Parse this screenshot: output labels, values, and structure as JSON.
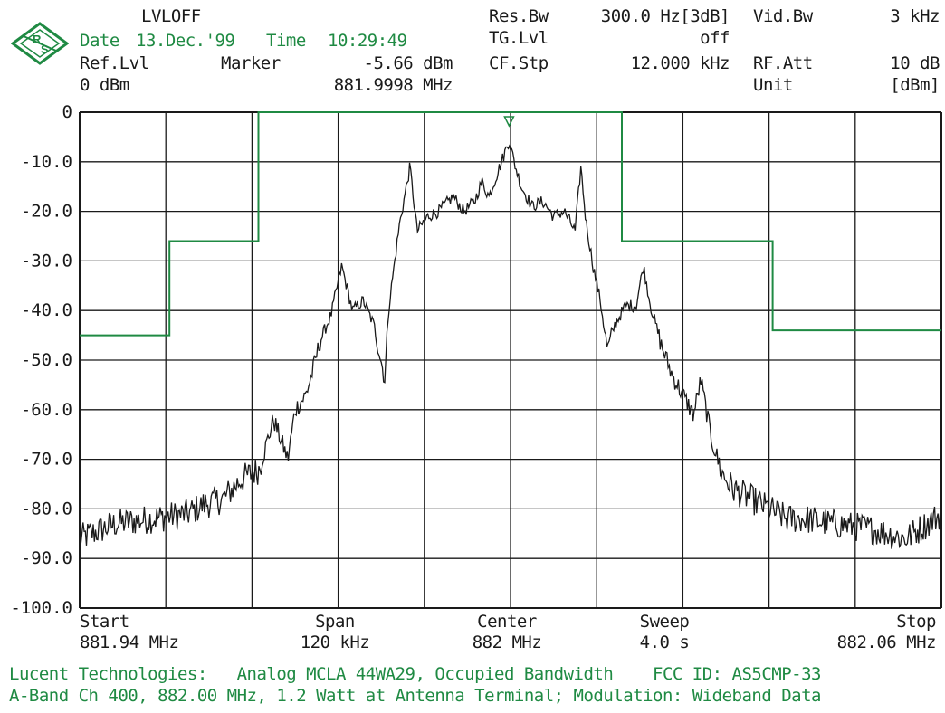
{
  "header": {
    "mode": "LVLOFF",
    "date_label": "Date",
    "date": "13.Dec.'99",
    "time_label": "Time",
    "time": "10:29:49",
    "ref_lvl_label": "Ref.Lvl",
    "ref_lvl": "0 dBm",
    "marker_label": "Marker",
    "marker_level": "-5.66 dBm",
    "marker_freq": "881.9998 MHz",
    "res_bw_label": "Res.Bw",
    "res_bw": "300.0 Hz[3dB]",
    "tg_lvl_label": "TG.Lvl",
    "tg_lvl": "off",
    "cf_stp_label": "CF.Stp",
    "cf_stp": "12.000 kHz",
    "vid_bw_label": "Vid.Bw",
    "vid_bw": "3 kHz",
    "rf_att_label": "RF.Att",
    "rf_att": "10 dB",
    "unit_label": "Unit",
    "unit": "[dBm]"
  },
  "footer": {
    "start_label": "Start",
    "start": "881.94 MHz",
    "span_label": "Span",
    "span": "120 kHz",
    "center_label": "Center",
    "center": "882 MHz",
    "sweep_label": "Sweep",
    "sweep": "4.0 s",
    "stop_label": "Stop",
    "stop": "882.06 MHz",
    "caption_line1": "Lucent Technologies:   Analog MCLA 44WA29, Occupied Bandwidth    FCC ID: AS5CMP-33",
    "caption_line2": "A-Band Ch 400, 882.00 MHz, 1.2 Watt at Antenna Terminal; Modulation: Wideband Data"
  },
  "colors": {
    "trace": "#1a1a1a",
    "mask": "#1f8a43",
    "grid": "#1a1a1a",
    "brand": "#1f8a43"
  },
  "chart_data": {
    "type": "line",
    "xlim": [
      881.94,
      882.06
    ],
    "ylim": [
      -100,
      0
    ],
    "y_ticks": [
      0,
      -10,
      -20,
      -30,
      -40,
      -50,
      -60,
      -70,
      -80,
      -90,
      -100
    ],
    "y_tick_labels": [
      "0",
      "-10.0",
      "-20.0",
      "-30.0",
      "-40.0",
      "-50.0",
      "-60.0",
      "-70.0",
      "-80.0",
      "-90.0",
      "-100.0"
    ],
    "x_divisions": 10,
    "grid": true,
    "marker": {
      "x": 881.9998,
      "y": -5.66
    },
    "center_line_x": 882.0,
    "series": [
      {
        "role": "trace",
        "x": [
          881.94,
          881.945,
          881.95,
          881.955,
          881.9575,
          881.96,
          881.9625,
          881.965,
          881.967,
          881.969,
          881.97,
          881.9715,
          881.9725,
          881.9735,
          881.975,
          881.9765,
          881.978,
          881.9795,
          881.981,
          881.9825,
          881.983,
          881.9845,
          881.986,
          881.987,
          881.9885,
          881.99,
          881.992,
          881.9935,
          881.995,
          881.996,
          881.997,
          881.998,
          881.999,
          881.9998,
          882.0005,
          882.0015,
          882.003,
          882.0045,
          882.006,
          882.0075,
          882.009,
          882.0098,
          882.0105,
          882.0115,
          882.0125,
          882.0135,
          882.0145,
          882.016,
          882.0175,
          882.0185,
          882.0195,
          882.021,
          882.0225,
          882.024,
          882.0255,
          882.0265,
          882.028,
          882.0295,
          882.031,
          882.0335,
          882.036,
          882.0385,
          882.041,
          882.045,
          882.05,
          882.055,
          882.06
        ],
        "y": [
          -86,
          -83,
          -82,
          -81,
          -79,
          -78,
          -74,
          -72,
          -62,
          -70,
          -60,
          -57,
          -52,
          -46,
          -41,
          -31,
          -40,
          -38,
          -43,
          -54,
          -40,
          -23,
          -11,
          -24,
          -21,
          -20,
          -17,
          -20,
          -18,
          -14,
          -17,
          -13,
          -9,
          -5.66,
          -10,
          -15,
          -19,
          -18,
          -21,
          -20,
          -24,
          -11,
          -22,
          -31,
          -38,
          -48,
          -43,
          -39,
          -39,
          -31,
          -39,
          -47,
          -53,
          -57,
          -61,
          -54,
          -66,
          -73,
          -76,
          -78,
          -80,
          -82,
          -82,
          -83,
          -84,
          -86,
          -81
        ]
      },
      {
        "role": "mask",
        "x": [
          881.94,
          881.9525,
          881.9525,
          881.9649,
          881.9649,
          882.0155,
          882.0155,
          882.0365,
          882.0365,
          882.06
        ],
        "y": [
          -45,
          -45,
          -26,
          -26,
          0,
          0,
          -26,
          -26,
          -44,
          -44
        ]
      }
    ]
  }
}
